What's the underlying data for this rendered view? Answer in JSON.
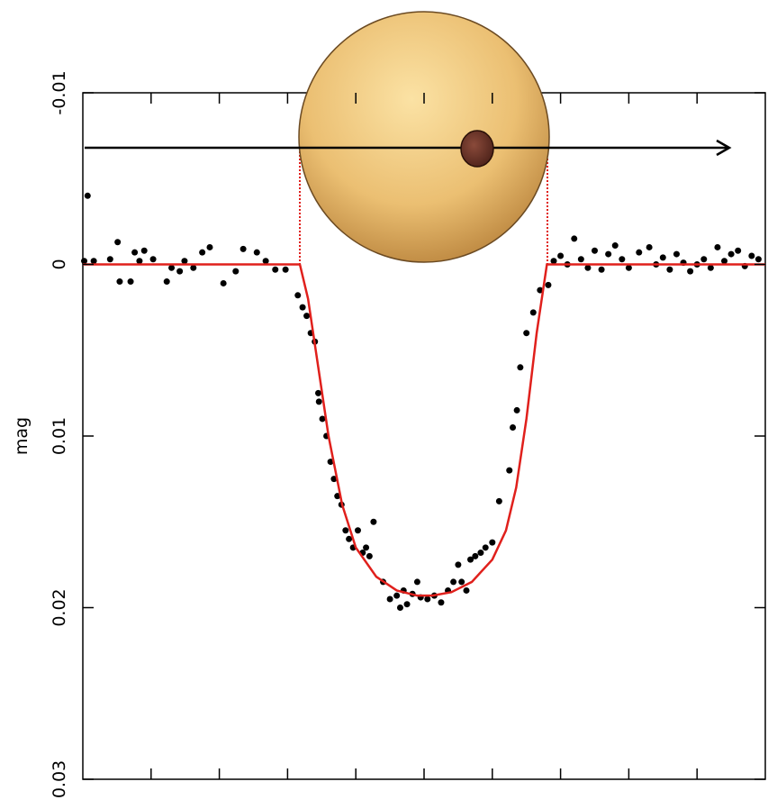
{
  "chart_data": {
    "type": "scatter",
    "ylabel": "mag",
    "color": "#000000",
    "x": [
      0.2,
      1.6,
      0.7,
      4,
      5.1,
      5.4,
      7,
      7.6,
      8.3,
      9,
      10.3,
      12.3,
      13,
      14.2,
      14.9,
      16.2,
      17.5,
      18.6,
      20.6,
      22.4,
      23.5,
      25.5,
      26.8,
      28.2,
      29.7,
      31.5,
      32.2,
      32.8,
      33.4,
      34,
      34.5,
      34.6,
      35.1,
      35.7,
      36.3,
      36.8,
      37.3,
      37.9,
      38.5,
      39,
      39.6,
      40.3,
      41,
      41.5,
      42,
      42.6,
      44,
      45,
      46,
      46.5,
      47,
      47.5,
      48.3,
      49,
      49.5,
      50.5,
      51.5,
      52.5,
      53.5,
      54.3,
      55,
      55.5,
      56.2,
      56.8,
      57.5,
      58.3,
      59,
      60,
      61,
      62.5,
      63,
      63.6,
      64.1,
      65,
      66,
      67,
      68.2,
      69,
      70,
      71,
      72,
      73,
      74,
      75,
      76,
      77,
      78,
      79,
      80,
      81.5,
      83,
      84,
      85,
      86,
      87,
      88,
      89,
      90,
      91,
      92,
      93,
      94,
      95,
      96,
      97,
      98,
      99
    ],
    "values": [
      -0.0002,
      -0.0002,
      -0.004,
      -0.0003,
      -0.0013,
      0.001,
      0.001,
      -0.0007,
      -0.0002,
      -0.0008,
      -0.0003,
      0.001,
      0.0002,
      0.0004,
      -0.0002,
      0.0002,
      -0.0007,
      -0.001,
      0.0011,
      0.0004,
      -0.0009,
      -0.0007,
      -0.0002,
      0.0003,
      0.0003,
      0.0018,
      0.0025,
      0.003,
      0.004,
      0.0045,
      0.0075,
      0.008,
      0.009,
      0.01,
      0.0115,
      0.0125,
      0.0135,
      0.014,
      0.0155,
      0.016,
      0.0165,
      0.0155,
      0.0168,
      0.0165,
      0.017,
      0.015,
      0.0185,
      0.0195,
      0.0193,
      0.02,
      0.019,
      0.0198,
      0.0192,
      0.0185,
      0.0194,
      0.0195,
      0.0193,
      0.0197,
      0.019,
      0.0185,
      0.0175,
      0.0185,
      0.019,
      0.0172,
      0.017,
      0.0168,
      0.0165,
      0.0162,
      0.0138,
      0.012,
      0.0095,
      0.0085,
      0.006,
      0.004,
      0.0028,
      0.0015,
      0.0012,
      -0.0002,
      -0.0005,
      0,
      -0.0015,
      -0.0003,
      0.0002,
      -0.0008,
      0.0003,
      -0.0006,
      -0.0011,
      -0.0003,
      0.0002,
      -0.0007,
      -0.001,
      0,
      -0.0004,
      0.0003,
      -0.0006,
      -0.0001,
      0.0004,
      0,
      -0.0003,
      0.0002,
      -0.001,
      -0.0002,
      -0.0006,
      -0.0008,
      0.0001,
      -0.0005,
      -0.0003
    ],
    "model": {
      "color": "#e0201c",
      "x": [
        0,
        31.8,
        33,
        34.5,
        36,
        38,
        40,
        43,
        46,
        49,
        51.2,
        54,
        57,
        60,
        62,
        63.5,
        65,
        66.5,
        68,
        100
      ],
      "values": [
        0,
        0,
        0.002,
        0.006,
        0.01,
        0.014,
        0.0165,
        0.0182,
        0.019,
        0.0193,
        0.0193,
        0.0191,
        0.0185,
        0.0172,
        0.0155,
        0.013,
        0.009,
        0.004,
        0,
        0
      ]
    },
    "xlim": [
      0,
      100
    ],
    "xticks": [
      10,
      20,
      30,
      40,
      50,
      60,
      70,
      80,
      90
    ],
    "ylim": [
      0.03,
      -0.01
    ],
    "yticks": [
      -0.01,
      0,
      0.01,
      0.02,
      0.03
    ]
  }
}
